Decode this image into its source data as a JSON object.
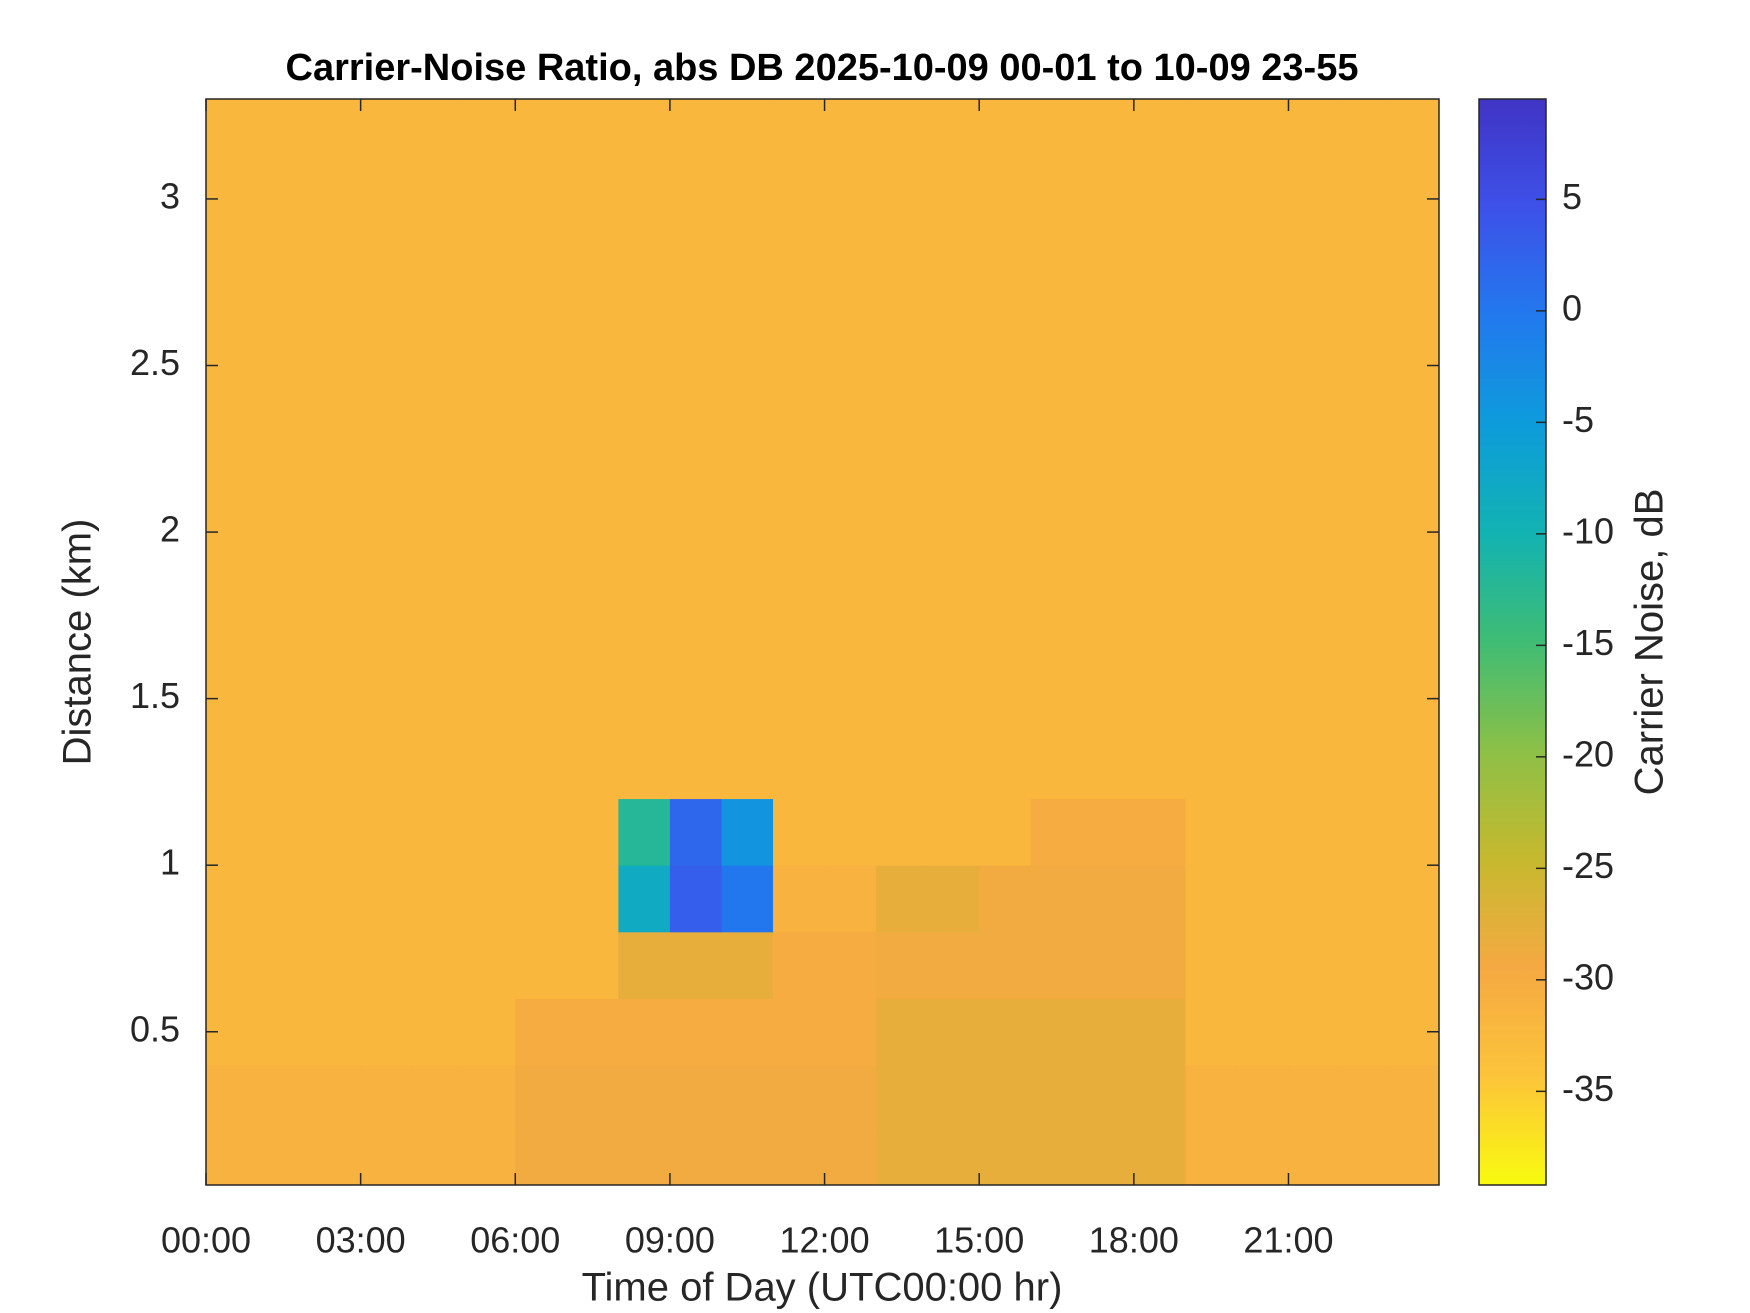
{
  "chart_data": {
    "type": "heatmap",
    "title": "Carrier-Noise Ratio, abs DB 2025-10-09 00-01 to 10-09 23-55",
    "x_label": "Time of Day (UTC00:00 hr)",
    "y_label": "Distance (km)",
    "colorbar_label": "Carrier Noise, dB",
    "x_edges": [
      0,
      1,
      2,
      3,
      4,
      5,
      6,
      7,
      8,
      9,
      10,
      11,
      12,
      13,
      14,
      15,
      16,
      17,
      18,
      19,
      20,
      21,
      22,
      23,
      23.92
    ],
    "y_edges": [
      0.04,
      0.2,
      0.4,
      0.6,
      0.8,
      1.0,
      1.2,
      1.4,
      1.6,
      1.8,
      2.0,
      2.2,
      2.4,
      2.6,
      2.8,
      3.0,
      3.2,
      3.3
    ],
    "z": [
      [
        -31,
        -31,
        -31,
        -31,
        -31,
        -31,
        -29,
        -29,
        -29,
        -29,
        -29,
        -29,
        -29,
        -28,
        -28,
        -28,
        -28,
        -28,
        -28,
        -31,
        -31,
        -31,
        -31,
        -31
      ],
      [
        -31,
        -31,
        -31,
        -31,
        -31,
        -31,
        -29,
        -29,
        -29,
        -29,
        -29,
        -29,
        -29,
        -28,
        -28,
        -28,
        -28,
        -28,
        -28,
        -31,
        -31,
        -31,
        -31,
        -31
      ],
      [
        -32,
        -32,
        -32,
        -32,
        -32,
        -32,
        -30,
        -30,
        -30,
        -30,
        -30,
        -30,
        -30,
        -28,
        -28,
        -28,
        -28,
        -28,
        -28,
        -32,
        -32,
        -32,
        -32,
        -32
      ],
      [
        -32,
        -32,
        -32,
        -32,
        -32,
        -32,
        -32,
        -32,
        -28,
        -28,
        -28,
        -30,
        -30,
        -29,
        -29,
        -29,
        -29,
        -29,
        -29,
        -32,
        -32,
        -32,
        -32,
        -32
      ],
      [
        -32,
        -32,
        -32,
        -32,
        -32,
        -32,
        -32,
        -32,
        -8,
        3,
        0,
        -31,
        -31,
        -28,
        -28,
        -29,
        -29,
        -29,
        -29,
        -32,
        -32,
        -32,
        -32,
        -32
      ],
      [
        -32,
        -32,
        -32,
        -32,
        -32,
        -32,
        -32,
        -32,
        -12,
        2,
        -4,
        -32,
        -32,
        -32,
        -32,
        -32,
        -30,
        -30,
        -30,
        -32,
        -32,
        -32,
        -32,
        -32
      ],
      [
        -32,
        -32,
        -32,
        -32,
        -32,
        -32,
        -32,
        -32,
        -32,
        -32,
        -32,
        -32,
        -32,
        -32,
        -32,
        -32,
        -32,
        -32,
        -32,
        -32,
        -32,
        -32,
        -32,
        -32
      ],
      [
        -32,
        -32,
        -32,
        -32,
        -32,
        -32,
        -32,
        -32,
        -32,
        -32,
        -32,
        -32,
        -32,
        -32,
        -32,
        -32,
        -32,
        -32,
        -32,
        -32,
        -32,
        -32,
        -32,
        -32
      ],
      [
        -32,
        -32,
        -32,
        -32,
        -32,
        -32,
        -32,
        -32,
        -32,
        -32,
        -32,
        -32,
        -32,
        -32,
        -32,
        -32,
        -32,
        -32,
        -32,
        -32,
        -32,
        -32,
        -32,
        -32
      ],
      [
        -32,
        -32,
        -32,
        -32,
        -32,
        -32,
        -32,
        -32,
        -32,
        -32,
        -32,
        -32,
        -32,
        -32,
        -32,
        -32,
        -32,
        -32,
        -32,
        -32,
        -32,
        -32,
        -32,
        -32
      ],
      [
        -32,
        -32,
        -32,
        -32,
        -32,
        -32,
        -32,
        -32,
        -32,
        -32,
        -32,
        -32,
        -32,
        -32,
        -32,
        -32,
        -32,
        -32,
        -32,
        -32,
        -32,
        -32,
        -32,
        -32
      ],
      [
        -32,
        -32,
        -32,
        -32,
        -32,
        -32,
        -32,
        -32,
        -32,
        -32,
        -32,
        -32,
        -32,
        -32,
        -32,
        -32,
        -32,
        -32,
        -32,
        -32,
        -32,
        -32,
        -32,
        -32
      ],
      [
        -32,
        -32,
        -32,
        -32,
        -32,
        -32,
        -32,
        -32,
        -32,
        -32,
        -32,
        -32,
        -32,
        -32,
        -32,
        -32,
        -32,
        -32,
        -32,
        -32,
        -32,
        -32,
        -32,
        -32
      ],
      [
        -32,
        -32,
        -32,
        -32,
        -32,
        -32,
        -32,
        -32,
        -32,
        -32,
        -32,
        -32,
        -32,
        -32,
        -32,
        -32,
        -32,
        -32,
        -32,
        -32,
        -32,
        -32,
        -32,
        -32
      ],
      [
        -32,
        -32,
        -32,
        -32,
        -32,
        -32,
        -32,
        -32,
        -32,
        -32,
        -32,
        -32,
        -32,
        -32,
        -32,
        -32,
        -32,
        -32,
        -32,
        -32,
        -32,
        -32,
        -32,
        -32
      ],
      [
        -32,
        -32,
        -32,
        -32,
        -32,
        -32,
        -32,
        -32,
        -32,
        -32,
        -32,
        -32,
        -32,
        -32,
        -32,
        -32,
        -32,
        -32,
        -32,
        -32,
        -32,
        -32,
        -32,
        -32
      ],
      [
        -32,
        -32,
        -32,
        -32,
        -32,
        -32,
        -32,
        -32,
        -32,
        -32,
        -32,
        -32,
        -32,
        -32,
        -32,
        -32,
        -32,
        -32,
        -32,
        -32,
        -32,
        -32,
        -32,
        -32
      ]
    ],
    "xlim": [
      0,
      23.92
    ],
    "ylim": [
      0.04,
      3.3
    ],
    "clim": [
      -39.2,
      9.5
    ],
    "xticks": [
      {
        "value": 0,
        "label": "00:00"
      },
      {
        "value": 3,
        "label": "03:00"
      },
      {
        "value": 6,
        "label": "06:00"
      },
      {
        "value": 9,
        "label": "09:00"
      },
      {
        "value": 12,
        "label": "12:00"
      },
      {
        "value": 15,
        "label": "15:00"
      },
      {
        "value": 18,
        "label": "18:00"
      },
      {
        "value": 21,
        "label": "21:00"
      }
    ],
    "yticks": [
      0.5,
      1,
      1.5,
      2,
      2.5,
      3
    ],
    "cticks": [
      -35,
      -30,
      -25,
      -20,
      -15,
      -10,
      -5,
      0,
      5
    ],
    "colormap": [
      "#f9fb0e",
      "#fcc43a",
      "#f5a942",
      "#c6b92e",
      "#8cc047",
      "#3fbc74",
      "#12b3b2",
      "#0d9cdb",
      "#2279ee",
      "#3d51e9",
      "#4034c4"
    ]
  }
}
